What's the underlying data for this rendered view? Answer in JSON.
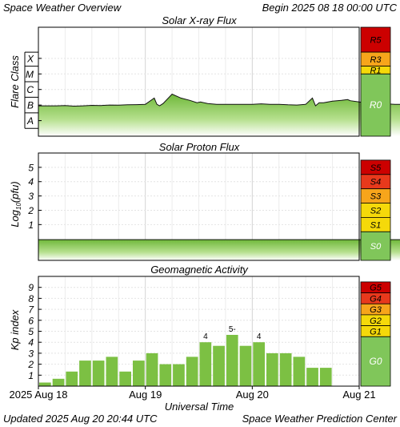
{
  "header": {
    "title": "Space Weather Overview",
    "begin": "Begin 2025 08 18 00:00 UTC"
  },
  "footer": {
    "updated": "Updated 2025 Aug 20 20:44 UTC",
    "center": "Space Weather Prediction Center"
  },
  "colors": {
    "fill_green": "#7cc043",
    "scale_green": "#80c65a",
    "scale_yellow": "#f5d90a",
    "scale_orange": "#f7a51b",
    "scale_red_light": "#e8391c",
    "scale_red_dark": "#cc0000",
    "grid": "#e6e6e6",
    "background": "#ffffff"
  },
  "chart_data": [
    {
      "type": "area",
      "title": "Solar X-ray Flux",
      "ylabel": "Flare Class",
      "y_scale": "log",
      "ylim": [
        -9,
        -2
      ],
      "tick_labels": [
        "X",
        "M",
        "C",
        "B",
        "A"
      ],
      "tick_values": [
        -4,
        -5,
        -6,
        -7,
        -8
      ],
      "noaa_scale": [
        {
          "label": "R5",
          "color": "#cc0000"
        },
        {
          "label": "R3",
          "color": "#f7a51b"
        },
        {
          "label": "R1",
          "color": "#f5d90a"
        },
        {
          "label": "R0",
          "color": "#80c65a"
        }
      ],
      "x": [
        0,
        2,
        4,
        6,
        8,
        10,
        12,
        14,
        16,
        18,
        20,
        22,
        24,
        26,
        26.6,
        27.2,
        28,
        30,
        32,
        34,
        35.6,
        36.4,
        38,
        40,
        42,
        44,
        46,
        48,
        50,
        52,
        54,
        56,
        58,
        60,
        61.5,
        62.2,
        63,
        64,
        66,
        68,
        69.4,
        70,
        72,
        74,
        76,
        78,
        80,
        82,
        84,
        86,
        88,
        90,
        91.2
      ],
      "y": [
        -7.05,
        -7.05,
        -7.05,
        -7.03,
        -7.07,
        -7.05,
        -7.02,
        -7.03,
        -7.0,
        -7.01,
        -6.98,
        -6.97,
        -6.95,
        -6.55,
        -6.95,
        -7.05,
        -6.9,
        -6.3,
        -6.55,
        -6.7,
        -6.85,
        -6.8,
        -6.9,
        -6.95,
        -6.95,
        -6.95,
        -6.95,
        -6.95,
        -6.92,
        -6.95,
        -6.95,
        -6.98,
        -7.0,
        -6.95,
        -6.55,
        -7.05,
        -6.85,
        -6.85,
        -6.75,
        -6.7,
        -6.65,
        -6.72,
        -6.8,
        -6.88,
        -6.9,
        -6.92,
        -6.95,
        -6.95,
        -6.97,
        -7.0,
        -7.0,
        -7.0,
        -7.02
      ]
    },
    {
      "type": "area",
      "title": "Solar Proton Flux",
      "ylabel": "Log10(pfu)",
      "ylabel_parts": [
        "Log",
        "10",
        "(pfu)"
      ],
      "ylim": [
        -1.5,
        6
      ],
      "tick_labels": [
        "5",
        "4",
        "3",
        "2",
        "1"
      ],
      "tick_values": [
        5,
        4,
        3,
        2,
        1
      ],
      "noaa_scale": [
        {
          "label": "S5",
          "color": "#cc0000"
        },
        {
          "label": "S4",
          "color": "#e8391c"
        },
        {
          "label": "S3",
          "color": "#f7a51b"
        },
        {
          "label": "S2",
          "color": "#f5d90a"
        },
        {
          "label": "S1",
          "color": "#f5d90a"
        },
        {
          "label": "S0",
          "color": "#80c65a"
        }
      ],
      "x": [
        0,
        91.2
      ],
      "y": [
        -0.05,
        -0.05
      ]
    },
    {
      "type": "bar",
      "title": "Geomagnetic Activity",
      "ylabel": "Kp index",
      "ylim": [
        0,
        10
      ],
      "tick_labels": [
        "9",
        "8",
        "7",
        "6",
        "5",
        "4",
        "3",
        "2",
        "1"
      ],
      "tick_values": [
        9,
        8,
        7,
        6,
        5,
        4,
        3,
        2,
        1
      ],
      "noaa_scale": [
        {
          "label": "G5",
          "color": "#cc0000"
        },
        {
          "label": "G4",
          "color": "#e8391c"
        },
        {
          "label": "G3",
          "color": "#f7a51b"
        },
        {
          "label": "G2",
          "color": "#f5d90a"
        },
        {
          "label": "G1",
          "color": "#f5d90a"
        },
        {
          "label": "G0",
          "color": "#80c65a"
        }
      ],
      "bar_hours": 3,
      "values": [
        0.33,
        0.67,
        1.33,
        2.33,
        2.33,
        2.67,
        1.33,
        2.33,
        3.0,
        2.0,
        2.0,
        2.67,
        4.0,
        3.67,
        4.67,
        3.67,
        4.0,
        3.0,
        3.0,
        2.67,
        1.67,
        1.67
      ],
      "annotations": [
        {
          "index": 12,
          "text": "4"
        },
        {
          "index": 14,
          "text": "5-"
        },
        {
          "index": 16,
          "text": "4"
        }
      ]
    }
  ],
  "x_axis": {
    "label": "Universal Time",
    "range_hours": [
      0,
      72
    ],
    "ticks": [
      {
        "hour": 0,
        "label": "2025 Aug 18"
      },
      {
        "hour": 24,
        "label": "Aug 19"
      },
      {
        "hour": 48,
        "label": "Aug 20"
      },
      {
        "hour": 72,
        "label": "Aug 21"
      }
    ]
  }
}
